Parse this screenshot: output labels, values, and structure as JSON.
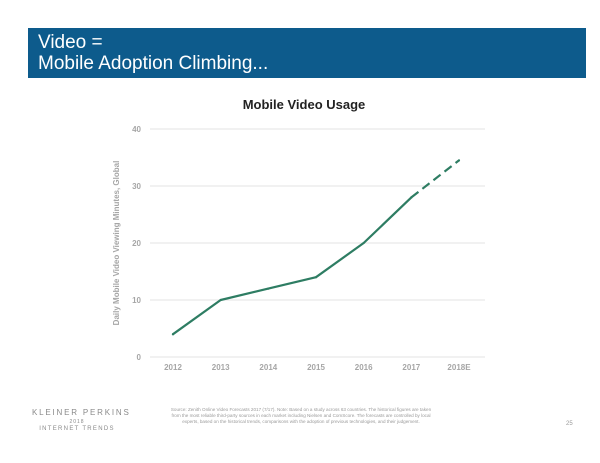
{
  "header": {
    "title_line1": "Video =",
    "title_line2": "Mobile Adoption Climbing..."
  },
  "colors": {
    "banner": "#0d5b8c",
    "series": "#2e7d63",
    "grid": "#e3e3e3",
    "axis_text": "#a6a6a6"
  },
  "chart_data": {
    "type": "line",
    "title": "Mobile Video Usage",
    "ylabel": "Daily Mobile Video Viewing Minutes, Global",
    "xlabel": "",
    "categories": [
      "2012",
      "2013",
      "2014",
      "2015",
      "2016",
      "2017",
      "2018E"
    ],
    "ylim": [
      0,
      40
    ],
    "yticks": [
      0,
      10,
      20,
      30,
      40
    ],
    "grid": true,
    "series": [
      {
        "name": "Mobile Video Viewing Minutes",
        "values": [
          4,
          10,
          12,
          14,
          20,
          28,
          34.5
        ],
        "dashed_from_index": 5
      }
    ]
  },
  "footer": {
    "brand": "KLEINER PERKINS",
    "year": "2018",
    "report": "INTERNET TRENDS",
    "source": "Source: Zenith Online Video Forecasts 2017 (7/17). Note: Based on a study across 63 countries. The historical figures are taken from the most reliable third-party sources in each market including Nielsen and ComScore. The forecasts are controlled by local experts, based on the historical trends, comparisons with the adoption of previous technologies, and their judgement.",
    "page_number": "25"
  }
}
